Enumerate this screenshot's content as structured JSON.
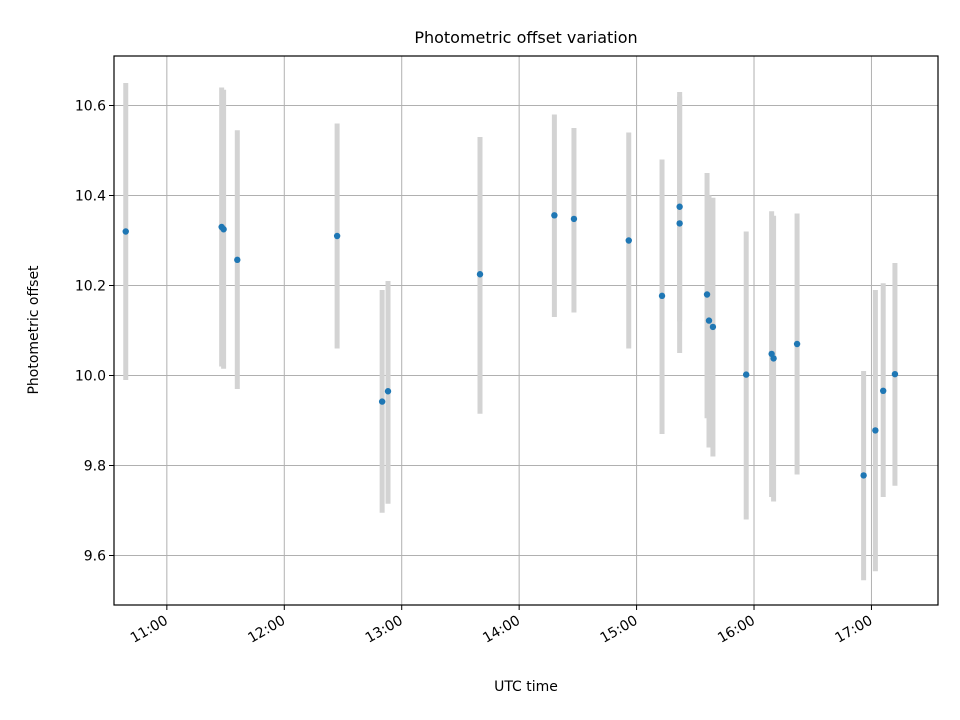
{
  "chart_data": {
    "type": "scatter",
    "title": "Photometric offset variation",
    "xlabel": "UTC time",
    "ylabel": "Photometric offset",
    "x_ticks": [
      "11:00",
      "12:00",
      "13:00",
      "14:00",
      "15:00",
      "16:00",
      "17:00"
    ],
    "y_ticks": [
      "9.6",
      "9.8",
      "10.0",
      "10.2",
      "10.4",
      "10.6"
    ],
    "xlim": [
      "10:33",
      "17:34"
    ],
    "ylim": [
      9.49,
      10.71
    ],
    "grid": true,
    "legend": "none",
    "colors": {
      "point": "#1f77b4",
      "errorbar": "#d3d3d3",
      "grid": "#b0b0b0"
    },
    "series": [
      {
        "points": [
          {
            "x": "10:39",
            "y": 10.32,
            "ylow": 9.99,
            "yhigh": 10.65
          },
          {
            "x": "11:28",
            "y": 10.33,
            "ylow": 10.02,
            "yhigh": 10.64
          },
          {
            "x": "11:29",
            "y": 10.325,
            "ylow": 10.015,
            "yhigh": 10.635
          },
          {
            "x": "11:36",
            "y": 10.257,
            "ylow": 9.97,
            "yhigh": 10.545
          },
          {
            "x": "12:27",
            "y": 10.31,
            "ylow": 10.06,
            "yhigh": 10.56
          },
          {
            "x": "12:50",
            "y": 9.942,
            "ylow": 9.695,
            "yhigh": 10.19
          },
          {
            "x": "12:53",
            "y": 9.965,
            "ylow": 9.715,
            "yhigh": 10.21
          },
          {
            "x": "13:40",
            "y": 10.225,
            "ylow": 9.915,
            "yhigh": 10.53
          },
          {
            "x": "14:18",
            "y": 10.356,
            "ylow": 10.13,
            "yhigh": 10.58
          },
          {
            "x": "14:28",
            "y": 10.348,
            "ylow": 10.14,
            "yhigh": 10.55
          },
          {
            "x": "14:56",
            "y": 10.3,
            "ylow": 10.06,
            "yhigh": 10.54
          },
          {
            "x": "15:13",
            "y": 10.177,
            "ylow": 9.87,
            "yhigh": 10.48
          },
          {
            "x": "15:22",
            "y": 10.375,
            "ylow": 10.12,
            "yhigh": 10.63
          },
          {
            "x": "15:22",
            "y": 10.338,
            "ylow": 10.05,
            "yhigh": 10.62
          },
          {
            "x": "15:36",
            "y": 10.18,
            "ylow": 9.905,
            "yhigh": 10.45
          },
          {
            "x": "15:37",
            "y": 10.122,
            "ylow": 9.84,
            "yhigh": 10.4
          },
          {
            "x": "15:39",
            "y": 10.108,
            "ylow": 9.82,
            "yhigh": 10.395
          },
          {
            "x": "15:56",
            "y": 10.002,
            "ylow": 9.68,
            "yhigh": 10.32
          },
          {
            "x": "16:09",
            "y": 10.048,
            "ylow": 9.73,
            "yhigh": 10.365
          },
          {
            "x": "16:10",
            "y": 10.038,
            "ylow": 9.72,
            "yhigh": 10.355
          },
          {
            "x": "16:22",
            "y": 10.07,
            "ylow": 9.78,
            "yhigh": 10.36
          },
          {
            "x": "16:56",
            "y": 9.778,
            "ylow": 9.545,
            "yhigh": 10.01
          },
          {
            "x": "17:02",
            "y": 9.878,
            "ylow": 9.565,
            "yhigh": 10.19
          },
          {
            "x": "17:06",
            "y": 9.966,
            "ylow": 9.73,
            "yhigh": 10.205
          },
          {
            "x": "17:12",
            "y": 10.003,
            "ylow": 9.755,
            "yhigh": 10.25
          }
        ]
      }
    ]
  }
}
